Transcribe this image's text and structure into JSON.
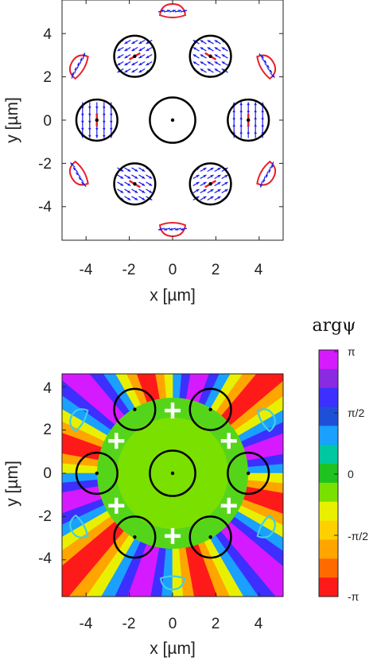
{
  "figure": {
    "top_panel": {
      "xlabel": "x [µm]",
      "ylabel": "y [µm]",
      "xticks": [
        "-4",
        "-2",
        "0",
        "2",
        "4"
      ],
      "yticks": [
        "4",
        "2",
        "0",
        "-2",
        "-4"
      ]
    },
    "bottom_panel": {
      "xlabel": "x [µm]",
      "ylabel": "y [µm]",
      "xticks": [
        "-4",
        "-2",
        "0",
        "2",
        "4"
      ],
      "yticks": [
        "4",
        "2",
        "0",
        "-2",
        "-4"
      ]
    },
    "colorbar": {
      "title": "argψ",
      "labels": [
        "π",
        "π/2",
        "0",
        "-π/2",
        "-π"
      ],
      "colors": [
        "#d61aff",
        "#8a2be2",
        "#3c2fff",
        "#1f4fd9",
        "#1aa0ff",
        "#00c8a0",
        "#1fc21f",
        "#7ae000",
        "#e8f000",
        "#ffd000",
        "#ffa500",
        "#ff6a00",
        "#ff1a1a"
      ]
    }
  },
  "colors": {
    "ring": "#000000",
    "arrow": "#1c1cf0",
    "current_loop": "#e8202a",
    "cyan_loop": "#40d0e0",
    "vortex_marker": "#ffffff"
  },
  "chart_data": [
    {
      "type": "vector-field",
      "title": "",
      "xlabel": "x [µm]",
      "ylabel": "y [µm]",
      "xlim": [
        -5.4,
        5.4
      ],
      "ylim": [
        -5.4,
        5.4
      ],
      "rings": [
        {
          "x": 0,
          "y": 0,
          "r": 1.05
        },
        {
          "x": 1.75,
          "y": 2.95,
          "r": 0.95
        },
        {
          "x": -1.75,
          "y": 2.95,
          "r": 0.95
        },
        {
          "x": 3.5,
          "y": 0,
          "r": 0.95
        },
        {
          "x": -3.5,
          "y": 0,
          "r": 0.95
        },
        {
          "x": 1.75,
          "y": -2.95,
          "r": 0.95
        },
        {
          "x": -1.75,
          "y": -2.95,
          "r": 0.95
        }
      ]
    },
    {
      "type": "heatmap",
      "title": "",
      "xlabel": "x [µm]",
      "ylabel": "y [µm]",
      "xlim": [
        -5.4,
        5.4
      ],
      "ylim": [
        -5.4,
        5.4
      ],
      "zlabel": "argψ",
      "zlim": [
        "-π",
        "π"
      ],
      "vortices": [
        {
          "x": 0,
          "y": 2.9
        },
        {
          "x": 0,
          "y": -2.9
        },
        {
          "x": 2.6,
          "y": 1.5
        },
        {
          "x": -2.6,
          "y": 1.5
        },
        {
          "x": 2.6,
          "y": -1.5
        },
        {
          "x": -2.6,
          "y": -1.5
        }
      ]
    }
  ]
}
